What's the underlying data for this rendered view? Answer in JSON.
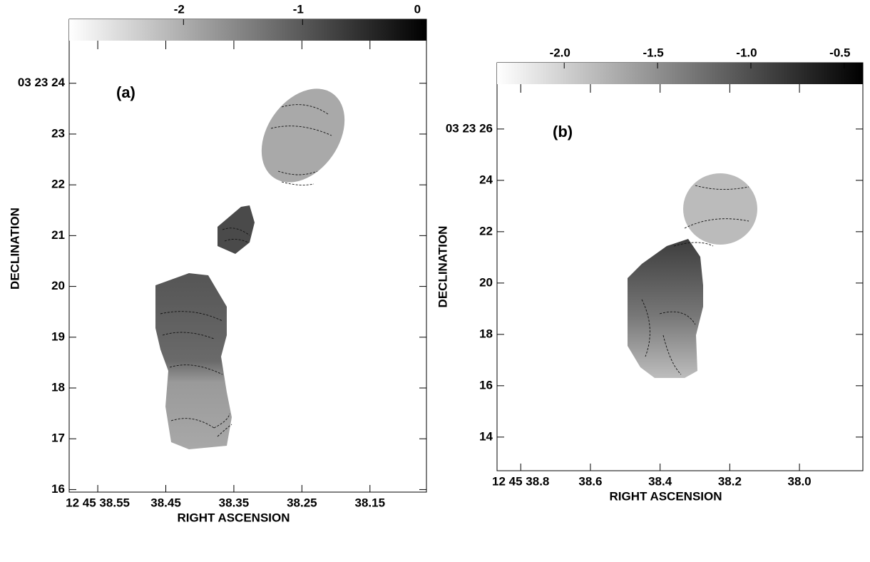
{
  "chart_data": [
    {
      "type": "map",
      "annotation": "(a)",
      "xlabel": "RIGHT ASCENSION",
      "ylabel": "DECLINATION",
      "xlim": [
        38.592,
        38.067
      ],
      "ylim": [
        15.95,
        25.26
      ],
      "xticks": [
        {
          "value": 38.55,
          "label": "12 45 38.55"
        },
        38.45,
        38.35,
        38.25,
        38.15
      ],
      "yticks": [
        {
          "value": 24,
          "label": "03 23 24"
        },
        23,
        22,
        21,
        20,
        19,
        18,
        17,
        16
      ],
      "colorbar": {
        "lim": [
          -2.96,
          0.04
        ],
        "ticks": [
          -2,
          -1,
          0
        ]
      }
    },
    {
      "type": "map",
      "annotation": "(b)",
      "xlabel": "RIGHT ASCENSION",
      "ylabel": "DECLINATION",
      "xlim": [
        38.868,
        37.818
      ],
      "ylim": [
        12.69,
        28.58
      ],
      "xticks": [
        {
          "value": 38.8,
          "label": "12 45 38.8"
        },
        38.6,
        38.4,
        38.2,
        {
          "value": 38.0,
          "label": "38.0"
        }
      ],
      "yticks": [
        {
          "value": 26,
          "label": "03 23 26"
        },
        24,
        22,
        20,
        18,
        16,
        14
      ],
      "colorbar": {
        "lim": [
          -2.36,
          -0.4
        ],
        "ticks": [
          {
            "value": -2.0,
            "label": "-2.0"
          },
          -1.5,
          {
            "value": -1.0,
            "label": "-1.0"
          },
          -0.5
        ]
      }
    }
  ]
}
